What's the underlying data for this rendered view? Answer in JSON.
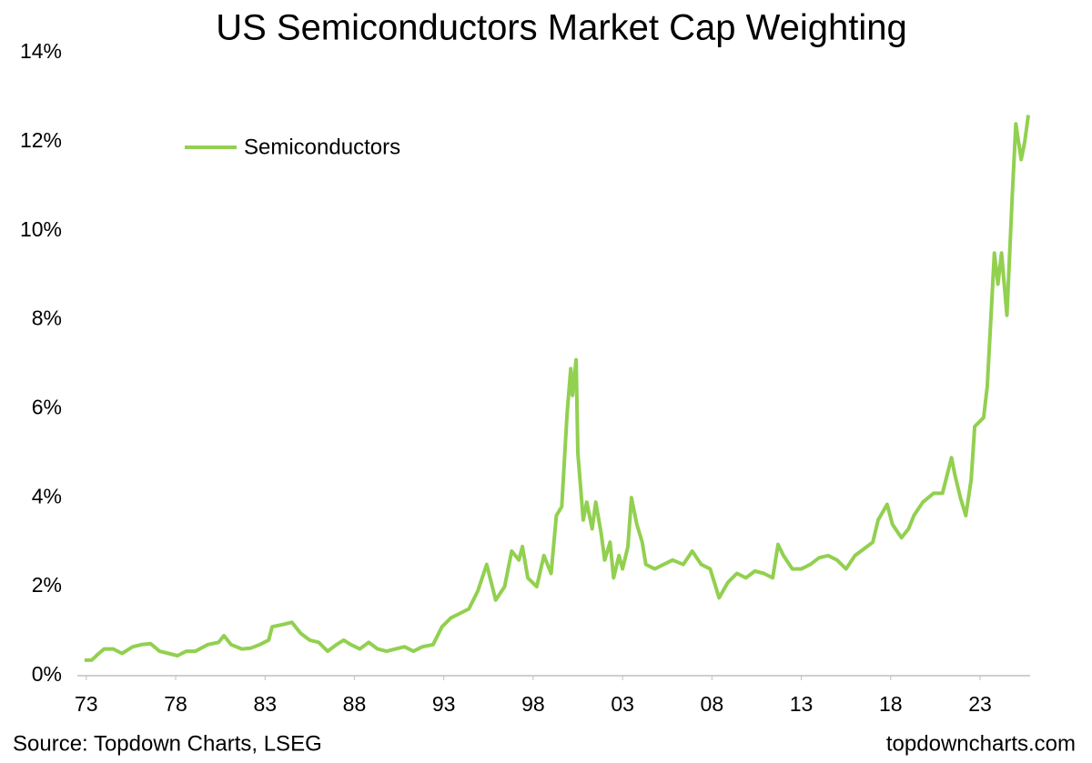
{
  "chart_data": {
    "type": "line",
    "title": "US Semiconductors Market Cap Weighting",
    "source": "Source: Topdown Charts, LSEG",
    "watermark": "topdowncharts.com",
    "legend": "top-left",
    "grid": false,
    "xlim": [
      1972.5,
      2025.8
    ],
    "ylim": [
      0,
      14
    ],
    "xticks": [
      {
        "value": 1973,
        "label": "73"
      },
      {
        "value": 1978,
        "label": "78"
      },
      {
        "value": 1983,
        "label": "83"
      },
      {
        "value": 1988,
        "label": "88"
      },
      {
        "value": 1993,
        "label": "93"
      },
      {
        "value": 1998,
        "label": "98"
      },
      {
        "value": 2003,
        "label": "03"
      },
      {
        "value": 2008,
        "label": "08"
      },
      {
        "value": 2013,
        "label": "13"
      },
      {
        "value": 2018,
        "label": "18"
      },
      {
        "value": 2023,
        "label": "23"
      }
    ],
    "yticks": [
      {
        "value": 0,
        "label": "0%"
      },
      {
        "value": 2,
        "label": "2%"
      },
      {
        "value": 4,
        "label": "4%"
      },
      {
        "value": 6,
        "label": "6%"
      },
      {
        "value": 8,
        "label": "8%"
      },
      {
        "value": 10,
        "label": "10%"
      },
      {
        "value": 12,
        "label": "12%"
      },
      {
        "value": 14,
        "label": "14%"
      }
    ],
    "x": [
      1972.9,
      1973.3,
      1973.7,
      1974.0,
      1974.5,
      1975.0,
      1975.6,
      1976.1,
      1976.6,
      1977.1,
      1977.6,
      1978.1,
      1978.6,
      1979.1,
      1979.8,
      1980.4,
      1980.7,
      1981.1,
      1981.7,
      1982.2,
      1982.7,
      1983.2,
      1983.4,
      1984.0,
      1984.5,
      1985.0,
      1985.5,
      1986.0,
      1986.5,
      1987.0,
      1987.4,
      1987.8,
      1988.3,
      1988.8,
      1989.3,
      1989.8,
      1990.3,
      1990.8,
      1991.3,
      1991.8,
      1992.4,
      1992.9,
      1993.4,
      1993.9,
      1994.4,
      1994.9,
      1995.4,
      1995.9,
      1996.4,
      1996.8,
      1997.2,
      1997.4,
      1997.7,
      1998.2,
      1998.6,
      1999.0,
      1999.3,
      1999.6,
      1999.9,
      2000.1,
      2000.2,
      2000.4,
      2000.5,
      2000.8,
      2001.0,
      2001.3,
      2001.5,
      2001.8,
      2002.0,
      2002.3,
      2002.5,
      2002.8,
      2003.0,
      2003.3,
      2003.5,
      2003.8,
      2004.1,
      2004.3,
      2004.8,
      2005.3,
      2005.8,
      2006.4,
      2006.9,
      2007.4,
      2007.9,
      2008.4,
      2008.9,
      2009.4,
      2009.9,
      2010.4,
      2010.9,
      2011.4,
      2011.7,
      2012.0,
      2012.5,
      2013.0,
      2013.5,
      2014.0,
      2014.5,
      2015.0,
      2015.5,
      2016.0,
      2016.5,
      2017.0,
      2017.3,
      2017.8,
      2018.1,
      2018.6,
      2019.0,
      2019.3,
      2019.8,
      2020.4,
      2020.9,
      2021.4,
      2021.6,
      2021.9,
      2022.2,
      2022.5,
      2022.7,
      2023.2,
      2023.4,
      2023.6,
      2023.8,
      2024.0,
      2024.2,
      2024.5,
      2024.8,
      2025.0,
      2025.3,
      2025.5,
      2025.7
    ],
    "series": [
      {
        "name": "Semiconductors",
        "color": "#92d050",
        "values": [
          0.35,
          0.35,
          0.5,
          0.6,
          0.6,
          0.5,
          0.65,
          0.7,
          0.72,
          0.55,
          0.5,
          0.45,
          0.55,
          0.55,
          0.7,
          0.75,
          0.9,
          0.7,
          0.6,
          0.62,
          0.7,
          0.8,
          1.1,
          1.15,
          1.2,
          0.95,
          0.8,
          0.75,
          0.55,
          0.7,
          0.8,
          0.7,
          0.6,
          0.75,
          0.6,
          0.55,
          0.6,
          0.65,
          0.55,
          0.65,
          0.7,
          1.1,
          1.3,
          1.4,
          1.5,
          1.9,
          2.5,
          1.7,
          2.0,
          2.8,
          2.6,
          2.9,
          2.2,
          2.0,
          2.7,
          2.3,
          3.6,
          3.8,
          5.9,
          6.9,
          6.3,
          7.1,
          5.0,
          3.5,
          3.9,
          3.3,
          3.9,
          3.2,
          2.6,
          3.0,
          2.2,
          2.7,
          2.4,
          2.9,
          4.0,
          3.4,
          3.0,
          2.5,
          2.4,
          2.5,
          2.6,
          2.5,
          2.8,
          2.5,
          2.4,
          1.75,
          2.1,
          2.3,
          2.2,
          2.35,
          2.3,
          2.2,
          2.95,
          2.7,
          2.4,
          2.4,
          2.5,
          2.65,
          2.7,
          2.6,
          2.4,
          2.7,
          2.85,
          3.0,
          3.5,
          3.85,
          3.4,
          3.1,
          3.3,
          3.6,
          3.9,
          4.1,
          4.1,
          4.9,
          4.5,
          4.0,
          3.6,
          4.4,
          5.6,
          5.8,
          6.5,
          8.0,
          9.5,
          8.8,
          9.5,
          8.1,
          10.8,
          12.4,
          11.6,
          12.0,
          12.6
        ]
      }
    ]
  }
}
